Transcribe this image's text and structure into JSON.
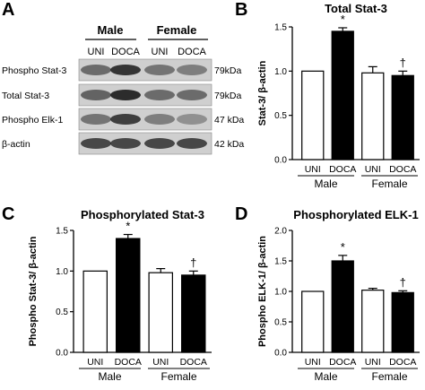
{
  "panels": {
    "a": "A",
    "b": "B",
    "c": "C",
    "d": "D"
  },
  "blot": {
    "groups": [
      "Male",
      "Female"
    ],
    "lanes": [
      "UNI",
      "DOCA",
      "UNI",
      "DOCA"
    ],
    "rows": [
      {
        "label": "Phospho Stat-3",
        "size": "79kDa"
      },
      {
        "label": "Total Stat-3",
        "size": "79kDa"
      },
      {
        "label": "Phospho Elk-1",
        "size": "47 kDa"
      },
      {
        "label": "β-actin",
        "size": "42 kDa"
      }
    ]
  },
  "chart_data": [
    {
      "type": "bar",
      "panel": "B",
      "title": "Total Stat-3",
      "ylabel": "Stat-3/ β-actin",
      "categories": [
        "UNI",
        "DOCA",
        "UNI",
        "DOCA"
      ],
      "groups": [
        "Male",
        "Female"
      ],
      "values": [
        1.0,
        1.45,
        0.98,
        0.95
      ],
      "errors": [
        0.0,
        0.04,
        0.07,
        0.05
      ],
      "fills": [
        "#ffffff",
        "#000000",
        "#ffffff",
        "#000000"
      ],
      "annotations": [
        "",
        "*",
        "",
        "†"
      ],
      "ylim": [
        0,
        1.5
      ],
      "yticks": [
        "0.0",
        "0.5",
        "1.0",
        "1.5"
      ]
    },
    {
      "type": "bar",
      "panel": "C",
      "title": "Phosphorylated Stat-3",
      "ylabel": "Phospho Stat-3/ β-actin",
      "categories": [
        "UNI",
        "DOCA",
        "UNI",
        "DOCA"
      ],
      "groups": [
        "Male",
        "Female"
      ],
      "values": [
        1.0,
        1.4,
        0.98,
        0.95
      ],
      "errors": [
        0.0,
        0.05,
        0.05,
        0.05
      ],
      "fills": [
        "#ffffff",
        "#000000",
        "#ffffff",
        "#000000"
      ],
      "annotations": [
        "",
        "*",
        "",
        "†"
      ],
      "ylim": [
        0,
        1.5
      ],
      "yticks": [
        "0.0",
        "0.5",
        "1.0",
        "1.5"
      ]
    },
    {
      "type": "bar",
      "panel": "D",
      "title": "Phosphorylated ELK-1",
      "ylabel": "Phospho ELK-1/ β-actin",
      "categories": [
        "UNI",
        "DOCA",
        "UNI",
        "DOCA"
      ],
      "groups": [
        "Male",
        "Female"
      ],
      "values": [
        1.0,
        1.5,
        1.02,
        0.98
      ],
      "errors": [
        0.0,
        0.09,
        0.03,
        0.03
      ],
      "fills": [
        "#ffffff",
        "#000000",
        "#ffffff",
        "#000000"
      ],
      "annotations": [
        "",
        "*",
        "",
        "†"
      ],
      "ylim": [
        0,
        2.0
      ],
      "yticks": [
        "0.0",
        "0.5",
        "1.0",
        "1.5",
        "2.0"
      ]
    }
  ]
}
